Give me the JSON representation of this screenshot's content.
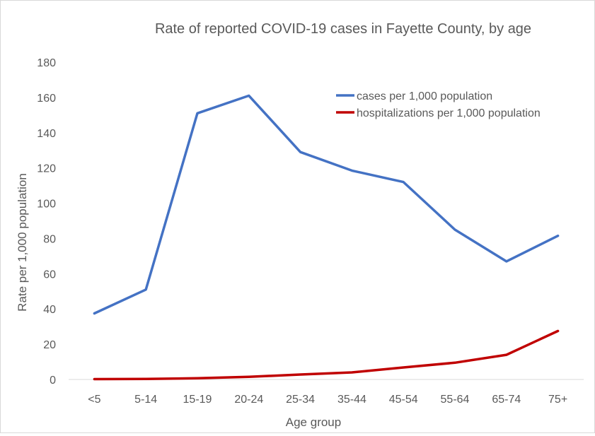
{
  "chart_data": {
    "type": "line",
    "title": "Rate of reported COVID-19 cases in Fayette County, by age",
    "xlabel": "Age group",
    "ylabel": "Rate per 1,000 population",
    "categories": [
      "<5",
      "5-14",
      "15-19",
      "20-24",
      "25-34",
      "35-44",
      "45-54",
      "55-64",
      "65-74",
      "75+"
    ],
    "ylim": [
      0,
      180
    ],
    "yticks": [
      0,
      20,
      40,
      60,
      80,
      100,
      120,
      140,
      160,
      180
    ],
    "grid": false,
    "legend": "top-right",
    "series": [
      {
        "name": "cases per 1,000 population",
        "color": "#4472c4",
        "values": [
          37.5,
          51,
          151,
          161,
          129,
          118.5,
          112,
          85,
          67,
          81.5
        ]
      },
      {
        "name": "hospitalizations per 1,000 population",
        "color": "#c00000",
        "values": [
          0.2,
          0.3,
          0.7,
          1.5,
          2.8,
          4,
          6.8,
          9.5,
          14,
          27.5
        ]
      }
    ]
  }
}
